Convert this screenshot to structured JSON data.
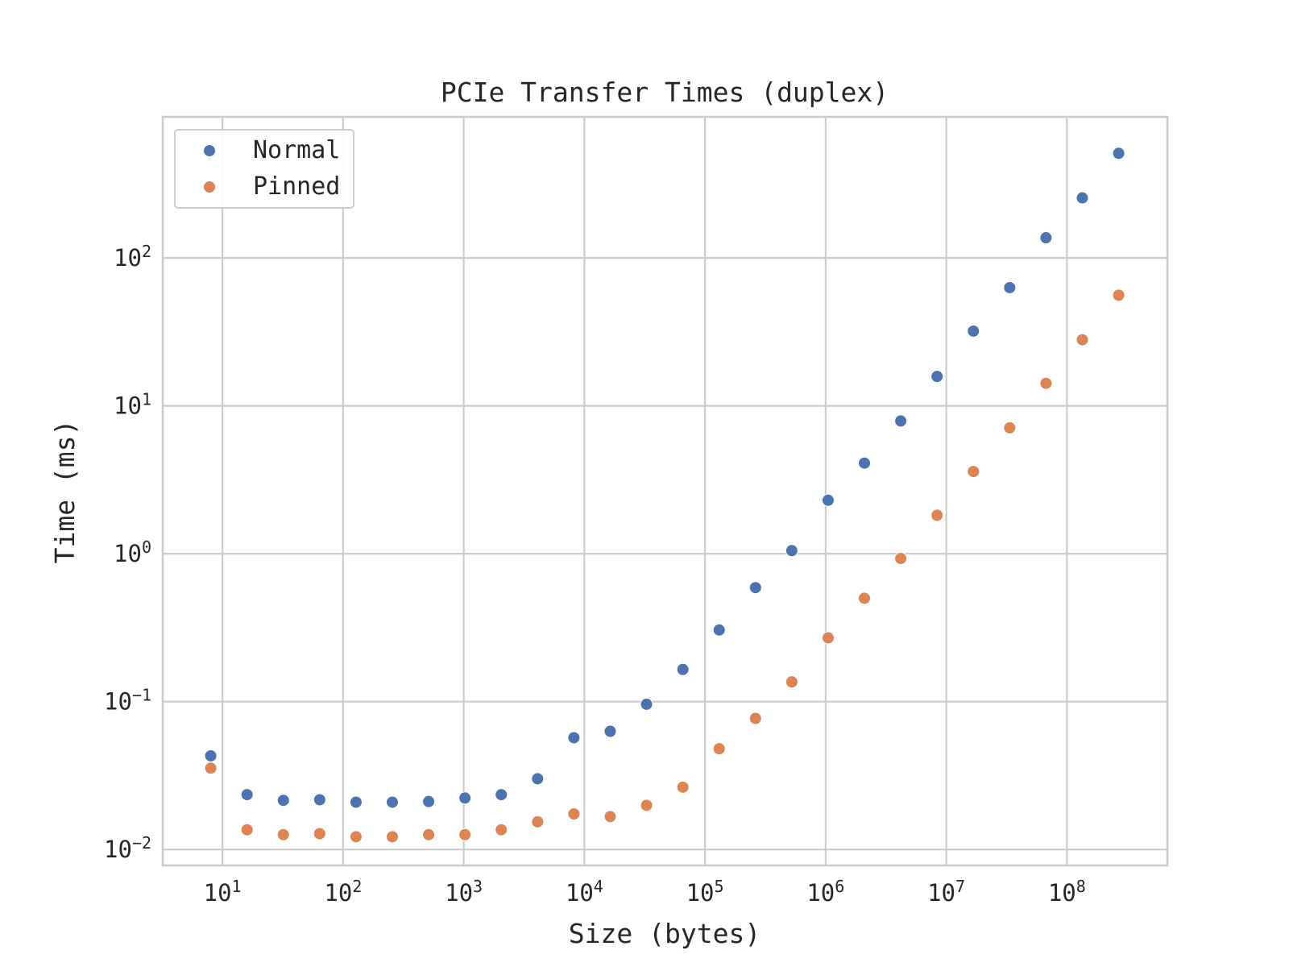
{
  "chart_data": {
    "type": "scatter",
    "title": "PCIe Transfer Times (duplex)",
    "xlabel": "Size (bytes)",
    "ylabel": "Time (ms)",
    "xscale": "log",
    "yscale": "log",
    "xlim": [
      3.2,
      680000000
    ],
    "ylim": [
      0.0078,
      900
    ],
    "grid": true,
    "legend_position": "top-left",
    "x_ticks": [
      {
        "value": 10,
        "base": "10",
        "exp": "1"
      },
      {
        "value": 100,
        "base": "10",
        "exp": "2"
      },
      {
        "value": 1000,
        "base": "10",
        "exp": "3"
      },
      {
        "value": 10000,
        "base": "10",
        "exp": "4"
      },
      {
        "value": 100000,
        "base": "10",
        "exp": "5"
      },
      {
        "value": 1000000,
        "base": "10",
        "exp": "6"
      },
      {
        "value": 10000000,
        "base": "10",
        "exp": "7"
      },
      {
        "value": 100000000,
        "base": "10",
        "exp": "8"
      }
    ],
    "y_ticks": [
      {
        "value": 0.01,
        "base": "10",
        "exp": "−2"
      },
      {
        "value": 0.1,
        "base": "10",
        "exp": "−1"
      },
      {
        "value": 1,
        "base": "10",
        "exp": "0"
      },
      {
        "value": 10,
        "base": "10",
        "exp": "1"
      },
      {
        "value": 100,
        "base": "10",
        "exp": "2"
      }
    ],
    "x": [
      8,
      16,
      32,
      64,
      128,
      256,
      512,
      1024,
      2048,
      4096,
      8192,
      16384,
      32768,
      65536,
      131072,
      262144,
      524288,
      1048576,
      2097152,
      4194304,
      8388608,
      16777216,
      33554432,
      67108864,
      134217728,
      268435456
    ],
    "series": [
      {
        "name": "Normal",
        "color": "#4c72b0",
        "values": [
          0.043,
          0.0235,
          0.0215,
          0.0217,
          0.0209,
          0.0209,
          0.0211,
          0.0223,
          0.0235,
          0.0301,
          0.057,
          0.063,
          0.096,
          0.165,
          0.305,
          0.59,
          1.05,
          2.3,
          4.1,
          7.9,
          15.8,
          32,
          63,
          137,
          255,
          510
        ]
      },
      {
        "name": "Pinned",
        "color": "#dd8452",
        "values": [
          0.0355,
          0.0136,
          0.0126,
          0.0128,
          0.0122,
          0.0122,
          0.0126,
          0.0126,
          0.0136,
          0.0154,
          0.0174,
          0.0167,
          0.0199,
          0.0264,
          0.048,
          0.077,
          0.136,
          0.27,
          0.5,
          0.93,
          1.82,
          3.6,
          7.1,
          14.2,
          28,
          56
        ]
      }
    ]
  }
}
